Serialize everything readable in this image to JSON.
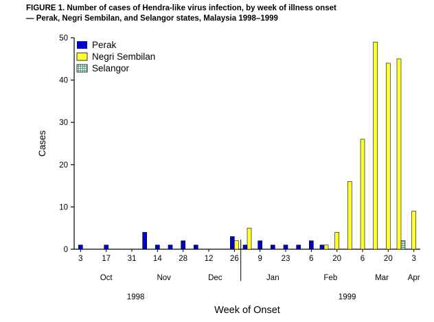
{
  "title_line1": "FIGURE 1. Number of cases of Hendra-like virus infection, by week of illness onset",
  "title_line2": "— Perak, Negri Sembilan, and Selangor states, Malaysia 1998–1999",
  "chart_data": {
    "type": "bar",
    "title": "FIGURE 1. Number of cases of Hendra-like virus infection, by week of illness onset — Perak, Negri Sembilan, and Selangor states, Malaysia 1998–1999",
    "xlabel": "Week of Onset",
    "ylabel": "Cases",
    "ylim": [
      0,
      50
    ],
    "yticks": [
      0,
      10,
      20,
      30,
      40,
      50
    ],
    "grid": false,
    "legend_position": "top-left",
    "categories": [
      "Oct 3",
      "Oct 10",
      "Oct 17",
      "Oct 24",
      "Oct 31",
      "Nov 7",
      "Nov 14",
      "Nov 21",
      "Nov 28",
      "Dec 5",
      "Dec 12",
      "Dec 19",
      "Dec 26",
      "Jan 2",
      "Jan 9",
      "Jan 16",
      "Jan 23",
      "Jan 30",
      "Feb 6",
      "Feb 13",
      "Feb 20",
      "Feb 27",
      "Mar 6",
      "Mar 13",
      "Mar 20",
      "Mar 27",
      "Apr 3"
    ],
    "x_tick_labels": [
      "3",
      "",
      "17",
      "",
      "31",
      "",
      "14",
      "",
      "28",
      "",
      "12",
      "",
      "26",
      "",
      "9",
      "",
      "23",
      "",
      "6",
      "",
      "20",
      "",
      "6",
      "",
      "20",
      "",
      "3"
    ],
    "months": [
      {
        "label": "Oct",
        "from": 0,
        "to": 4
      },
      {
        "label": "Nov",
        "from": 5,
        "to": 8
      },
      {
        "label": "Dec",
        "from": 9,
        "to": 12
      },
      {
        "label": "Jan",
        "from": 13,
        "to": 17
      },
      {
        "label": "Feb",
        "from": 18,
        "to": 21
      },
      {
        "label": "Mar",
        "from": 22,
        "to": 25
      },
      {
        "label": "Apr",
        "from": 26,
        "to": 26
      }
    ],
    "years": [
      {
        "label": "1998",
        "week": 4.8
      },
      {
        "label": "1999",
        "week": 21.3
      }
    ],
    "year_divider_week": 13,
    "series": [
      {
        "name": "Perak",
        "color": "#0000CC",
        "values": [
          1,
          0,
          1,
          0,
          0,
          4,
          1,
          1,
          2,
          1,
          0,
          0,
          3,
          1,
          2,
          1,
          1,
          1,
          2,
          1,
          0,
          0,
          0,
          0,
          0,
          0,
          0
        ]
      },
      {
        "name": "Negri Sembilan",
        "color": "#FFFF33",
        "values": [
          0,
          0,
          0,
          0,
          0,
          0,
          0,
          0,
          0,
          0,
          0,
          0,
          2,
          5,
          0,
          0,
          0,
          0,
          0,
          1,
          4,
          16,
          26,
          49,
          44,
          45,
          9
        ]
      },
      {
        "name": "Selangor",
        "color": "hatch",
        "pattern": {
          "bg": "#F0FAF3",
          "line": "#2E8B74"
        },
        "values": [
          0,
          0,
          0,
          0,
          0,
          0,
          0,
          0,
          0,
          0,
          0,
          0,
          0,
          0,
          0,
          0,
          0,
          0,
          0,
          0,
          0,
          0,
          0,
          0,
          0,
          2,
          0
        ]
      }
    ]
  }
}
